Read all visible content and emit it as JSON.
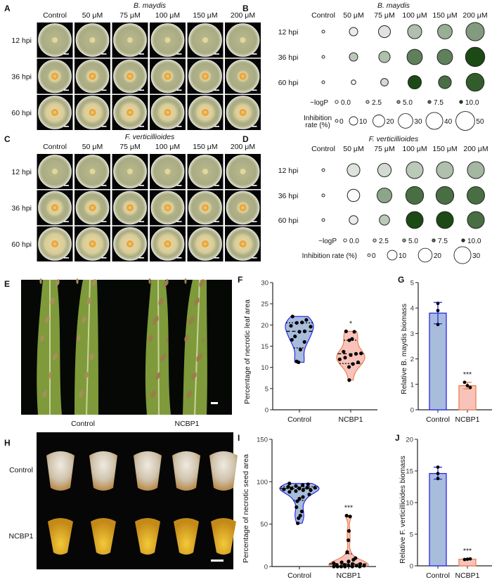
{
  "panel_letters": [
    "A",
    "B",
    "C",
    "D",
    "E",
    "F",
    "G",
    "H",
    "I",
    "J"
  ],
  "panel_a": {
    "title": "B. maydis",
    "columns": [
      "Control",
      "50 μM",
      "75 μM",
      "100 μM",
      "150 μM",
      "200 μM"
    ],
    "rows": [
      "12 hpi",
      "36 hpi",
      "60 hpi"
    ]
  },
  "panel_c": {
    "title": "F. verticillioides",
    "columns": [
      "Control",
      "50 μM",
      "75 μM",
      "100 μM",
      "150 μM",
      "200 μM"
    ],
    "rows": [
      "12 hpi",
      "36 hpi",
      "60 hpi"
    ]
  },
  "panel_e": {
    "labels": [
      "Control",
      "NCBP1"
    ]
  },
  "panel_h": {
    "labels": [
      "Control",
      "NCBP1"
    ]
  },
  "colors": {
    "control": "#a8bcdc",
    "control_edge": "#2a2ae8",
    "ncbp1": "#f9c3bb",
    "ncbp1_edge": "#e8834f",
    "bubble_low": "#ffffff",
    "bubble_high": "#1b4a14"
  },
  "chart_data": [
    {
      "type": "bubble-matrix",
      "title": "B. maydis",
      "columns": [
        "Control",
        "50 μM",
        "75 μM",
        "100 μM",
        "150 μM",
        "200 μM"
      ],
      "rows": [
        "12 hpi",
        "36 hpi",
        "60 hpi"
      ],
      "inhibition_rate": [
        [
          0,
          10,
          20,
          28,
          30,
          47
        ],
        [
          0,
          10,
          18,
          33,
          33,
          52
        ],
        [
          0,
          3,
          8,
          25,
          23,
          45
        ]
      ],
      "neg_log_p": [
        [
          0,
          1,
          1.5,
          3.5,
          4.5,
          5.5
        ],
        [
          0,
          3,
          3.5,
          7,
          7,
          10
        ],
        [
          0,
          0.5,
          2,
          10,
          8,
          9
        ]
      ],
      "legend_logp_label": "−logP",
      "legend_logp_values": [
        "0.0",
        "2.5",
        "5.0",
        "7.5",
        "10.0"
      ],
      "legend_size_label": [
        "Inhibition",
        "rate (%)"
      ],
      "legend_size_values": [
        "0",
        "10",
        "20",
        "30",
        "40",
        "50"
      ]
    },
    {
      "type": "bubble-matrix",
      "title": "F. verticillioides",
      "columns": [
        "Control",
        "50 μM",
        "75 μM",
        "100 μM",
        "150 μM",
        "200 μM"
      ],
      "rows": [
        "12 hpi",
        "36 hpi",
        "60 hpi"
      ],
      "inhibition_rate": [
        [
          0,
          17,
          19,
          30,
          30,
          30
        ],
        [
          0,
          16,
          23,
          33,
          33,
          32
        ],
        [
          0,
          8,
          11,
          30,
          30,
          30
        ]
      ],
      "neg_log_p": [
        [
          0,
          1.5,
          2,
          3,
          3.5,
          4
        ],
        [
          0,
          0.2,
          5,
          8,
          8,
          8
        ],
        [
          0,
          1,
          3,
          10,
          10,
          8
        ]
      ],
      "legend_logp_label": "−logP",
      "legend_logp_values": [
        "0.0",
        "2.5",
        "5.0",
        "7.5",
        "10.0"
      ],
      "legend_size_label": [
        "Inhibition rate (%)"
      ],
      "legend_size_values": [
        "0",
        "10",
        "20",
        "30"
      ]
    },
    {
      "type": "violin",
      "ylabel": "Percentage of necrotic leaf area",
      "ylim": [
        0,
        30
      ],
      "yticks": [
        "0",
        "5",
        "10",
        "15",
        "20",
        "25",
        "30"
      ],
      "categories": [
        "Control",
        "NCBP1"
      ],
      "points": [
        [
          22,
          21.2,
          20.6,
          20.5,
          19.8,
          19.6,
          18.5,
          18.4,
          17.3,
          16.5,
          16,
          14.2,
          11.2,
          11.4
        ],
        [
          18.5,
          18.4,
          16.7,
          16.4,
          13.7,
          13.3,
          13.2,
          12.9,
          12.3,
          11.9,
          11.2,
          10.8,
          10.1,
          7
        ]
      ],
      "median": [
        18.5,
        13.2
      ],
      "quartiles": [
        [
          14.6,
          20.5
        ],
        [
          10.9,
          16.4
        ]
      ],
      "significance": [
        "",
        "*"
      ]
    },
    {
      "type": "bar",
      "ylabel": "Relative B. maydis biomass",
      "ylim": [
        0,
        5
      ],
      "yticks": [
        "0",
        "1",
        "2",
        "3",
        "4",
        "5"
      ],
      "categories": [
        "Control",
        "NCBP1"
      ],
      "values": [
        3.8,
        0.95
      ],
      "error": [
        [
          3.38,
          4.22
        ],
        [
          0.82,
          1.08
        ]
      ],
      "points": [
        [
          4.18,
          3.9,
          3.35
        ],
        [
          1.08,
          0.95,
          0.88
        ]
      ],
      "significance": [
        "",
        "***"
      ]
    },
    {
      "type": "violin",
      "ylabel": "Percentage of necrotic seed area",
      "ylim": [
        0,
        150
      ],
      "yticks": [
        "0",
        "50",
        "100",
        "150"
      ],
      "categories": [
        "Control",
        "NCBP1"
      ],
      "points": [
        [
          98,
          97,
          96,
          95,
          94,
          93,
          93,
          92,
          92,
          91,
          90,
          90,
          89,
          88,
          85,
          82,
          80,
          77,
          70,
          65,
          60,
          57,
          51
        ],
        [
          60,
          59,
          42,
          31,
          17,
          10,
          8,
          6,
          5,
          4,
          3,
          3,
          2,
          2,
          1,
          1,
          1,
          0,
          0,
          0,
          0,
          0,
          0
        ]
      ],
      "median": [
        92,
        3
      ],
      "quartiles": [
        [
          78,
          94
        ],
        [
          0,
          15
        ]
      ],
      "significance": [
        "",
        "***"
      ]
    },
    {
      "type": "bar",
      "ylabel": "Relative F. verticillioides biomass",
      "ylim": [
        0,
        20
      ],
      "yticks": [
        "0",
        "5",
        "10",
        "15",
        "20"
      ],
      "categories": [
        "Control",
        "NCBP1"
      ],
      "values": [
        14.6,
        1.05
      ],
      "error": [
        [
          13.7,
          15.6
        ],
        [
          1.0,
          1.1
        ]
      ],
      "points": [
        [
          15.6,
          14.6,
          13.8
        ],
        [
          1.0,
          1.05,
          1.1
        ]
      ],
      "significance": [
        "",
        "***"
      ]
    }
  ]
}
